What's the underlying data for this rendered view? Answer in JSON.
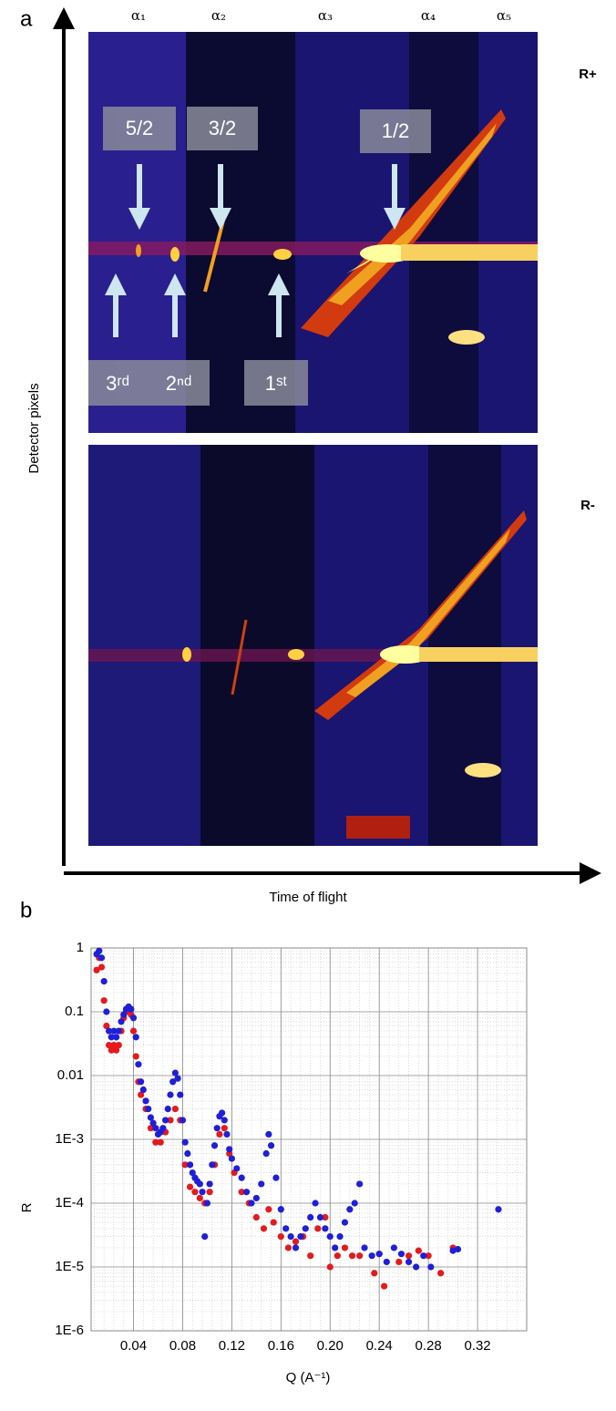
{
  "panel_a": {
    "label": "a",
    "angles": [
      "α₁",
      "α₂",
      "α₃",
      "α₄",
      "α₅"
    ],
    "states": [
      "R+",
      "R-"
    ],
    "ylabel": "Detector pixels",
    "xlabel": "Time of flight",
    "peaks": [
      "5/2",
      "3/2",
      "1/2"
    ],
    "orders": [
      "3ʳᵈ",
      "2ⁿᵈ",
      "1ˢᵗ"
    ]
  },
  "chart_data": {
    "type": "scatter",
    "panel_label": "b",
    "xlabel": "Q (A⁻¹)",
    "ylabel": "R",
    "xlim": [
      0.0055,
      0.36
    ],
    "xticks": [
      0.04,
      0.08,
      0.12,
      0.16,
      0.2,
      0.24,
      0.28,
      0.32
    ],
    "xtick_labels": [
      "0.04",
      "0.08",
      "0.12",
      "0.16",
      "0.20",
      "0.24",
      "0.28",
      "0.32"
    ],
    "ylim": [
      1e-06,
      1
    ],
    "log_y": true,
    "grid": true,
    "yticks": [
      1,
      0.1,
      0.01,
      {
        "value": 0.001,
        "label": "1E-3"
      },
      {
        "value": 0.0001,
        "label": "1E-4"
      },
      {
        "value": 1e-05,
        "label": "1E-5"
      },
      {
        "value": 1e-06,
        "label": "1E-6"
      }
    ],
    "series": [
      {
        "color": "#e41a1c",
        "x": [
          0.01,
          0.012,
          0.014,
          0.016,
          0.018,
          0.02,
          0.022,
          0.024,
          0.026,
          0.028,
          0.03,
          0.032,
          0.034,
          0.036,
          0.038,
          0.04,
          0.042,
          0.044,
          0.046,
          0.05,
          0.054,
          0.058,
          0.062,
          0.066,
          0.07,
          0.074,
          0.078,
          0.082,
          0.086,
          0.09,
          0.094,
          0.098,
          0.102,
          0.106,
          0.11,
          0.114,
          0.118,
          0.122,
          0.128,
          0.134,
          0.14,
          0.146,
          0.15,
          0.154,
          0.16,
          0.166,
          0.172,
          0.178,
          0.184,
          0.19,
          0.196,
          0.2,
          0.206,
          0.212,
          0.218,
          0.224,
          0.236,
          0.24,
          0.244,
          0.256,
          0.264,
          0.272,
          0.28,
          0.29,
          0.3
        ],
        "values": [
          0.45,
          0.7,
          0.5,
          0.15,
          0.06,
          0.03,
          0.025,
          0.03,
          0.025,
          0.03,
          0.05,
          0.08,
          0.1,
          0.11,
          0.09,
          0.05,
          0.02,
          0.008,
          0.005,
          0.003,
          0.0015,
          0.0009,
          0.0009,
          0.0013,
          0.002,
          0.003,
          0.002,
          0.0004,
          0.00018,
          0.00015,
          0.00012,
          0.0001,
          0.00015,
          0.0004,
          0.0012,
          0.0015,
          0.0006,
          0.0003,
          0.00015,
          0.0001,
          6e-05,
          4e-05,
          8e-05,
          5e-05,
          3e-05,
          2e-05,
          2.5e-05,
          3e-05,
          1.5e-05,
          4e-05,
          6e-05,
          1e-05,
          1.5e-05,
          2e-05,
          1.5e-05,
          1.5e-05,
          8e-06,
          1.6e-05,
          5e-06,
          1.2e-05,
          1.5e-05,
          1.8e-05,
          1.5e-05,
          8e-06,
          2e-05
        ]
      },
      {
        "color": "#1f1fd8",
        "x": [
          0.01,
          0.012,
          0.014,
          0.016,
          0.018,
          0.02,
          0.022,
          0.024,
          0.026,
          0.028,
          0.03,
          0.032,
          0.034,
          0.036,
          0.038,
          0.04,
          0.042,
          0.044,
          0.046,
          0.048,
          0.05,
          0.052,
          0.054,
          0.056,
          0.058,
          0.06,
          0.062,
          0.064,
          0.066,
          0.068,
          0.07,
          0.072,
          0.074,
          0.076,
          0.078,
          0.08,
          0.082,
          0.084,
          0.086,
          0.088,
          0.09,
          0.092,
          0.094,
          0.096,
          0.098,
          0.1,
          0.102,
          0.104,
          0.106,
          0.108,
          0.11,
          0.112,
          0.114,
          0.116,
          0.118,
          0.12,
          0.124,
          0.128,
          0.132,
          0.136,
          0.14,
          0.144,
          0.148,
          0.15,
          0.152,
          0.156,
          0.16,
          0.164,
          0.168,
          0.172,
          0.176,
          0.18,
          0.184,
          0.188,
          0.192,
          0.196,
          0.2,
          0.204,
          0.208,
          0.212,
          0.216,
          0.22,
          0.224,
          0.228,
          0.234,
          0.24,
          0.246,
          0.252,
          0.258,
          0.264,
          0.27,
          0.276,
          0.282,
          0.3,
          0.304,
          0.337
        ],
        "values": [
          0.8,
          0.9,
          0.7,
          0.3,
          0.1,
          0.05,
          0.04,
          0.05,
          0.04,
          0.05,
          0.07,
          0.09,
          0.11,
          0.12,
          0.11,
          0.08,
          0.04,
          0.015,
          0.008,
          0.006,
          0.004,
          0.003,
          0.0022,
          0.0018,
          0.0015,
          0.0012,
          0.0013,
          0.0015,
          0.002,
          0.003,
          0.005,
          0.008,
          0.011,
          0.009,
          0.005,
          0.002,
          0.0009,
          0.0006,
          0.0004,
          0.0003,
          0.00025,
          0.00022,
          0.0002,
          0.00015,
          3e-05,
          0.0001,
          0.0002,
          0.0004,
          0.0008,
          0.0015,
          0.0023,
          0.0026,
          0.002,
          0.0012,
          0.0007,
          0.0005,
          0.00035,
          0.00025,
          0.00015,
          0.0001,
          0.00012,
          0.0002,
          0.0006,
          0.0012,
          0.0008,
          0.00025,
          8e-05,
          4e-05,
          3e-05,
          2e-05,
          3e-05,
          4e-05,
          6e-05,
          0.0001,
          6e-05,
          4e-05,
          3e-05,
          2e-05,
          3e-05,
          5e-05,
          8e-05,
          0.0001,
          0.0002,
          2e-05,
          1.5e-05,
          1.6e-05,
          1.2e-05,
          2e-05,
          1.6e-05,
          1.2e-05,
          1e-05,
          1.5e-05,
          1e-05,
          1.8e-05,
          1.9e-05,
          8e-05
        ]
      }
    ]
  }
}
